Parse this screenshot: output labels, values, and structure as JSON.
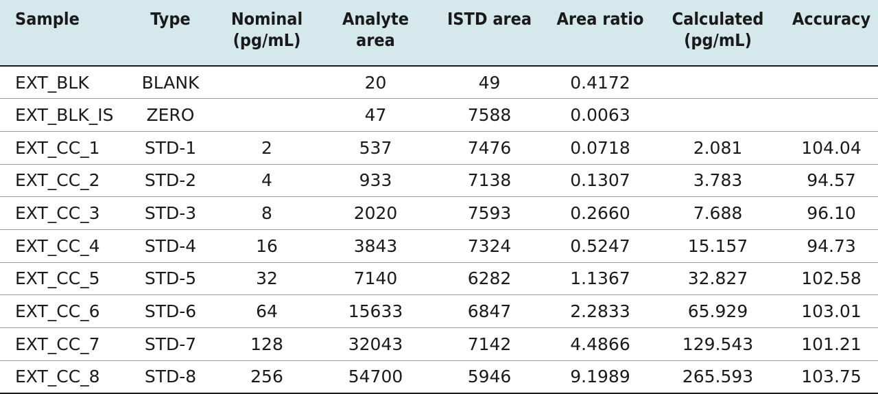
{
  "table": {
    "headers": [
      [
        "Sample"
      ],
      [
        "Type"
      ],
      [
        "Nominal",
        "(pg/mL)"
      ],
      [
        "Analyte",
        "area"
      ],
      [
        "ISTD area"
      ],
      [
        "Area ratio"
      ],
      [
        "Calculated",
        "(pg/mL)"
      ],
      [
        "Accuracy"
      ]
    ],
    "rows": [
      [
        "EXT_BLK",
        "BLANK",
        "",
        "20",
        "49",
        "0.4172",
        "",
        ""
      ],
      [
        "EXT_BLK_IS",
        "ZERO",
        "",
        "47",
        "7588",
        "0.0063",
        "",
        ""
      ],
      [
        "EXT_CC_1",
        "STD-1",
        "2",
        "537",
        "7476",
        "0.0718",
        "2.081",
        "104.04"
      ],
      [
        "EXT_CC_2",
        "STD-2",
        "4",
        "933",
        "7138",
        "0.1307",
        "3.783",
        "94.57"
      ],
      [
        "EXT_CC_3",
        "STD-3",
        "8",
        "2020",
        "7593",
        "0.2660",
        "7.688",
        "96.10"
      ],
      [
        "EXT_CC_4",
        "STD-4",
        "16",
        "3843",
        "7324",
        "0.5247",
        "15.157",
        "94.73"
      ],
      [
        "EXT_CC_5",
        "STD-5",
        "32",
        "7140",
        "6282",
        "1.1367",
        "32.827",
        "102.58"
      ],
      [
        "EXT_CC_6",
        "STD-6",
        "64",
        "15633",
        "6847",
        "2.2833",
        "65.929",
        "103.01"
      ],
      [
        "EXT_CC_7",
        "STD-7",
        "128",
        "32043",
        "7142",
        "4.4866",
        "129.543",
        "101.21"
      ],
      [
        "EXT_CC_8",
        "STD-8",
        "256",
        "54700",
        "5946",
        "9.1989",
        "265.593",
        "103.75"
      ]
    ]
  }
}
